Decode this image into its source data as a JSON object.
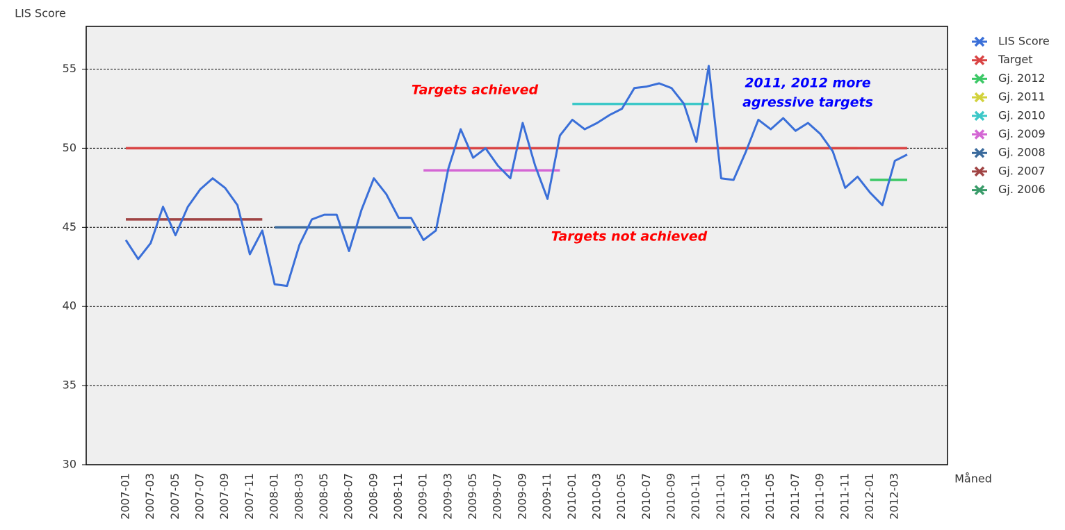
{
  "chart_data": {
    "type": "line",
    "y_axis_label": "LIS Score",
    "x_axis_label": "Måned",
    "categories": [
      "2007-01",
      null,
      "2007-03",
      null,
      "2007-05",
      null,
      "2007-07",
      null,
      "2007-09",
      null,
      "2007-11",
      null,
      "2008-01",
      null,
      "2008-03",
      null,
      "2008-05",
      null,
      "2008-07",
      null,
      "2008-09",
      null,
      "2008-11",
      null,
      "2009-01",
      null,
      "2009-03",
      null,
      "2009-05",
      null,
      "2009-07",
      null,
      "2009-09",
      null,
      "2009-11",
      null,
      "2010-01",
      null,
      "2010-03",
      null,
      "2010-05",
      null,
      "2010-07",
      null,
      "2010-09",
      null,
      "2010-11",
      null,
      "2011-01",
      null,
      "2011-03",
      null,
      "2011-05",
      null,
      "2011-07",
      null,
      "2011-09",
      null,
      "2011-11",
      null,
      "2012-01",
      null,
      "2012-03",
      null
    ],
    "ylim": [
      30,
      57.7
    ],
    "yticks": [
      30,
      35,
      40,
      45,
      50,
      55
    ],
    "grid": true,
    "legend": "right",
    "series": [
      {
        "name": "LIS Score",
        "color": "#3a6fd8",
        "values": [
          44.2,
          43.0,
          44.0,
          46.3,
          44.5,
          46.3,
          47.4,
          48.1,
          47.5,
          46.4,
          43.3,
          44.8,
          41.4,
          41.3,
          43.9,
          45.5,
          45.8,
          45.8,
          43.5,
          46.1,
          48.1,
          47.1,
          45.6,
          45.6,
          44.2,
          44.8,
          48.7,
          51.2,
          49.4,
          50.0,
          48.9,
          48.1,
          51.6,
          48.9,
          46.8,
          50.8,
          51.8,
          51.2,
          51.6,
          52.1,
          52.5,
          53.8,
          53.9,
          54.1,
          53.8,
          52.8,
          50.4,
          55.2,
          48.1,
          48.0,
          49.8,
          51.8,
          51.2,
          51.9,
          51.1,
          51.6,
          50.9,
          49.8,
          47.5,
          48.2,
          47.2,
          46.4,
          49.2,
          49.6
        ]
      },
      {
        "name": "Target",
        "color": "#d94444",
        "values": [
          50,
          50,
          50,
          50,
          50,
          50,
          50,
          50,
          50,
          50,
          50,
          50,
          50,
          50,
          50,
          50,
          50,
          50,
          50,
          50,
          50,
          50,
          50,
          50,
          50,
          50,
          50,
          50,
          50,
          50,
          50,
          50,
          50,
          50,
          50,
          50,
          50,
          50,
          50,
          50,
          50,
          50,
          50,
          50,
          50,
          50,
          50,
          50,
          50,
          50,
          50,
          50,
          50,
          50,
          50,
          50,
          50,
          50,
          50,
          50,
          50,
          50,
          50,
          50
        ]
      },
      {
        "name": "Gj. 2012",
        "color": "#3cc866",
        "values": [
          null,
          null,
          null,
          null,
          null,
          null,
          null,
          null,
          null,
          null,
          null,
          null,
          null,
          null,
          null,
          null,
          null,
          null,
          null,
          null,
          null,
          null,
          null,
          null,
          null,
          null,
          null,
          null,
          null,
          null,
          null,
          null,
          null,
          null,
          null,
          null,
          null,
          null,
          null,
          null,
          null,
          null,
          null,
          null,
          null,
          null,
          null,
          null,
          null,
          null,
          null,
          null,
          null,
          null,
          null,
          null,
          null,
          null,
          null,
          null,
          48,
          48,
          48,
          48
        ]
      },
      {
        "name": "Gj. 2011",
        "color": "#d2d23c",
        "values": [
          null,
          null,
          null,
          null,
          null,
          null,
          null,
          null,
          null,
          null,
          null,
          null,
          null,
          null,
          null,
          null,
          null,
          null,
          null,
          null,
          null,
          null,
          null,
          null,
          null,
          null,
          null,
          null,
          null,
          null,
          null,
          null,
          null,
          null,
          null,
          null,
          null,
          null,
          null,
          null,
          null,
          null,
          null,
          null,
          null,
          null,
          null,
          null,
          50,
          50,
          50,
          50,
          50,
          50,
          50,
          50,
          50,
          50,
          50,
          50,
          null,
          null,
          null,
          null
        ]
      },
      {
        "name": "Gj. 2010",
        "color": "#3cc8c8",
        "values": [
          null,
          null,
          null,
          null,
          null,
          null,
          null,
          null,
          null,
          null,
          null,
          null,
          null,
          null,
          null,
          null,
          null,
          null,
          null,
          null,
          null,
          null,
          null,
          null,
          null,
          null,
          null,
          null,
          null,
          null,
          null,
          null,
          null,
          null,
          null,
          null,
          52.8,
          52.8,
          52.8,
          52.8,
          52.8,
          52.8,
          52.8,
          52.8,
          52.8,
          52.8,
          52.8,
          52.8,
          null,
          null,
          null,
          null,
          null,
          null,
          null,
          null,
          null,
          null,
          null,
          null,
          null,
          null,
          null,
          null
        ]
      },
      {
        "name": "Gj. 2009",
        "color": "#d466d4",
        "values": [
          null,
          null,
          null,
          null,
          null,
          null,
          null,
          null,
          null,
          null,
          null,
          null,
          null,
          null,
          null,
          null,
          null,
          null,
          null,
          null,
          null,
          null,
          null,
          null,
          48.6,
          48.6,
          48.6,
          48.6,
          48.6,
          48.6,
          48.6,
          48.6,
          48.6,
          48.6,
          48.6,
          48.6,
          null,
          null,
          null,
          null,
          null,
          null,
          null,
          null,
          null,
          null,
          null,
          null,
          null,
          null,
          null,
          null,
          null,
          null,
          null,
          null,
          null,
          null,
          null,
          null,
          null,
          null,
          null,
          null
        ]
      },
      {
        "name": "Gj. 2008",
        "color": "#3a6a9c",
        "values": [
          null,
          null,
          null,
          null,
          null,
          null,
          null,
          null,
          null,
          null,
          null,
          null,
          45,
          45,
          45,
          45,
          45,
          45,
          45,
          45,
          45,
          45,
          45,
          45,
          null,
          null,
          null,
          null,
          null,
          null,
          null,
          null,
          null,
          null,
          null,
          null,
          null,
          null,
          null,
          null,
          null,
          null,
          null,
          null,
          null,
          null,
          null,
          null,
          null,
          null,
          null,
          null,
          null,
          null,
          null,
          null,
          null,
          null,
          null,
          null,
          null,
          null,
          null,
          null
        ]
      },
      {
        "name": "Gj. 2007",
        "color": "#a04444",
        "values": [
          45.5,
          45.5,
          45.5,
          45.5,
          45.5,
          45.5,
          45.5,
          45.5,
          45.5,
          45.5,
          45.5,
          45.5,
          null,
          null,
          null,
          null,
          null,
          null,
          null,
          null,
          null,
          null,
          null,
          null,
          null,
          null,
          null,
          null,
          null,
          null,
          null,
          null,
          null,
          null,
          null,
          null,
          null,
          null,
          null,
          null,
          null,
          null,
          null,
          null,
          null,
          null,
          null,
          null,
          null,
          null,
          null,
          null,
          null,
          null,
          null,
          null,
          null,
          null,
          null,
          null,
          null,
          null,
          null,
          null
        ]
      },
      {
        "name": "Gj. 2006",
        "color": "#3a9c6a",
        "values": [
          null,
          null,
          null,
          null,
          null,
          null,
          null,
          null,
          null,
          null,
          null,
          null,
          null,
          null,
          null,
          null,
          null,
          null,
          null,
          null,
          null,
          null,
          null,
          null,
          null,
          null,
          null,
          null,
          null,
          null,
          null,
          null,
          null,
          null,
          null,
          null,
          null,
          null,
          null,
          null,
          null,
          null,
          null,
          null,
          null,
          null,
          null,
          null,
          null,
          null,
          null,
          null,
          null,
          null,
          null,
          null,
          null,
          null,
          null,
          null,
          null,
          null,
          null,
          null
        ]
      }
    ],
    "annotations": [
      {
        "lines": [
          "Targets achieved"
        ],
        "color": "#ff0000"
      },
      {
        "lines": [
          "Targets not achieved"
        ],
        "color": "#ff0000"
      },
      {
        "lines": [
          "2011, 2012 more",
          "agressive targets"
        ],
        "color": "#0000ff"
      }
    ]
  }
}
